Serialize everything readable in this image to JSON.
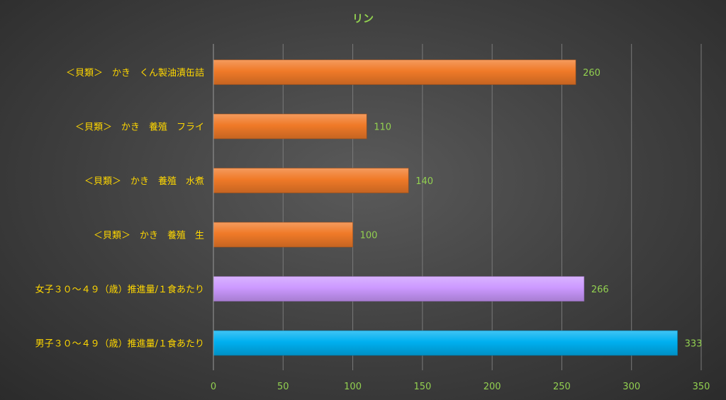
{
  "chart_data": {
    "type": "bar",
    "orientation": "horizontal",
    "title": "リン",
    "categories": [
      "＜貝類＞　かき　くん製油漬缶詰",
      "＜貝類＞　かき　養殖　フライ",
      "＜貝類＞　かき　養殖　水煮",
      "＜貝類＞　かき　養殖　生",
      "女子３０～４９（歳）推進量/１食あたり",
      "男子３０～４９（歳）推進量/１食あたり"
    ],
    "values": [
      260,
      110,
      140,
      100,
      266,
      333
    ],
    "value_labels": [
      "260",
      "110",
      "140",
      "100",
      "266",
      "333"
    ],
    "bar_colors": [
      "#F07A28",
      "#F07A28",
      "#F07A28",
      "#F07A28",
      "#CC99FF",
      "#00B0F0"
    ],
    "xlim": [
      0,
      350
    ],
    "x_ticks": [
      "0",
      "50",
      "100",
      "150",
      "200",
      "250",
      "300",
      "350"
    ],
    "xlabel": "",
    "ylabel": "",
    "grid": "vertical",
    "legend": "none"
  },
  "colors": {
    "title": "#92D050",
    "category_label": "#FFD700",
    "tick_label": "#92D050",
    "value_label": "#92D050",
    "gridline": "#7a7a7a",
    "axis_line": "#9a9a9a"
  }
}
